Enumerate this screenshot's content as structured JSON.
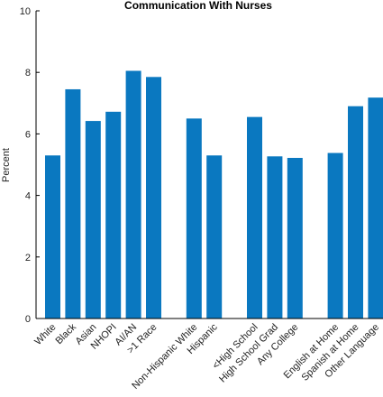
{
  "chart_data": {
    "type": "bar",
    "title": "Communication With Nurses",
    "xlabel": "",
    "ylabel": "Percent",
    "ylim": [
      0,
      10
    ],
    "yticks": [
      0,
      2,
      4,
      6,
      8,
      10
    ],
    "grid": false,
    "bar_color": "#0a78c0",
    "groups": [
      {
        "categories": [
          "White",
          "Black",
          "Asian",
          "NHOPI",
          "AI/AN",
          ">1 Race"
        ],
        "values": [
          5.3,
          7.45,
          6.42,
          6.72,
          8.05,
          7.85
        ]
      },
      {
        "categories": [
          "Non-Hispanic White",
          "Hispanic"
        ],
        "values": [
          6.5,
          5.3
        ]
      },
      {
        "categories": [
          "<High School",
          "High School Grad",
          "Any College"
        ],
        "values": [
          6.55,
          5.27,
          5.22
        ]
      },
      {
        "categories": [
          "English at Home",
          "Spanish at Home",
          "Other Language"
        ],
        "values": [
          5.38,
          6.9,
          7.18
        ]
      }
    ]
  }
}
